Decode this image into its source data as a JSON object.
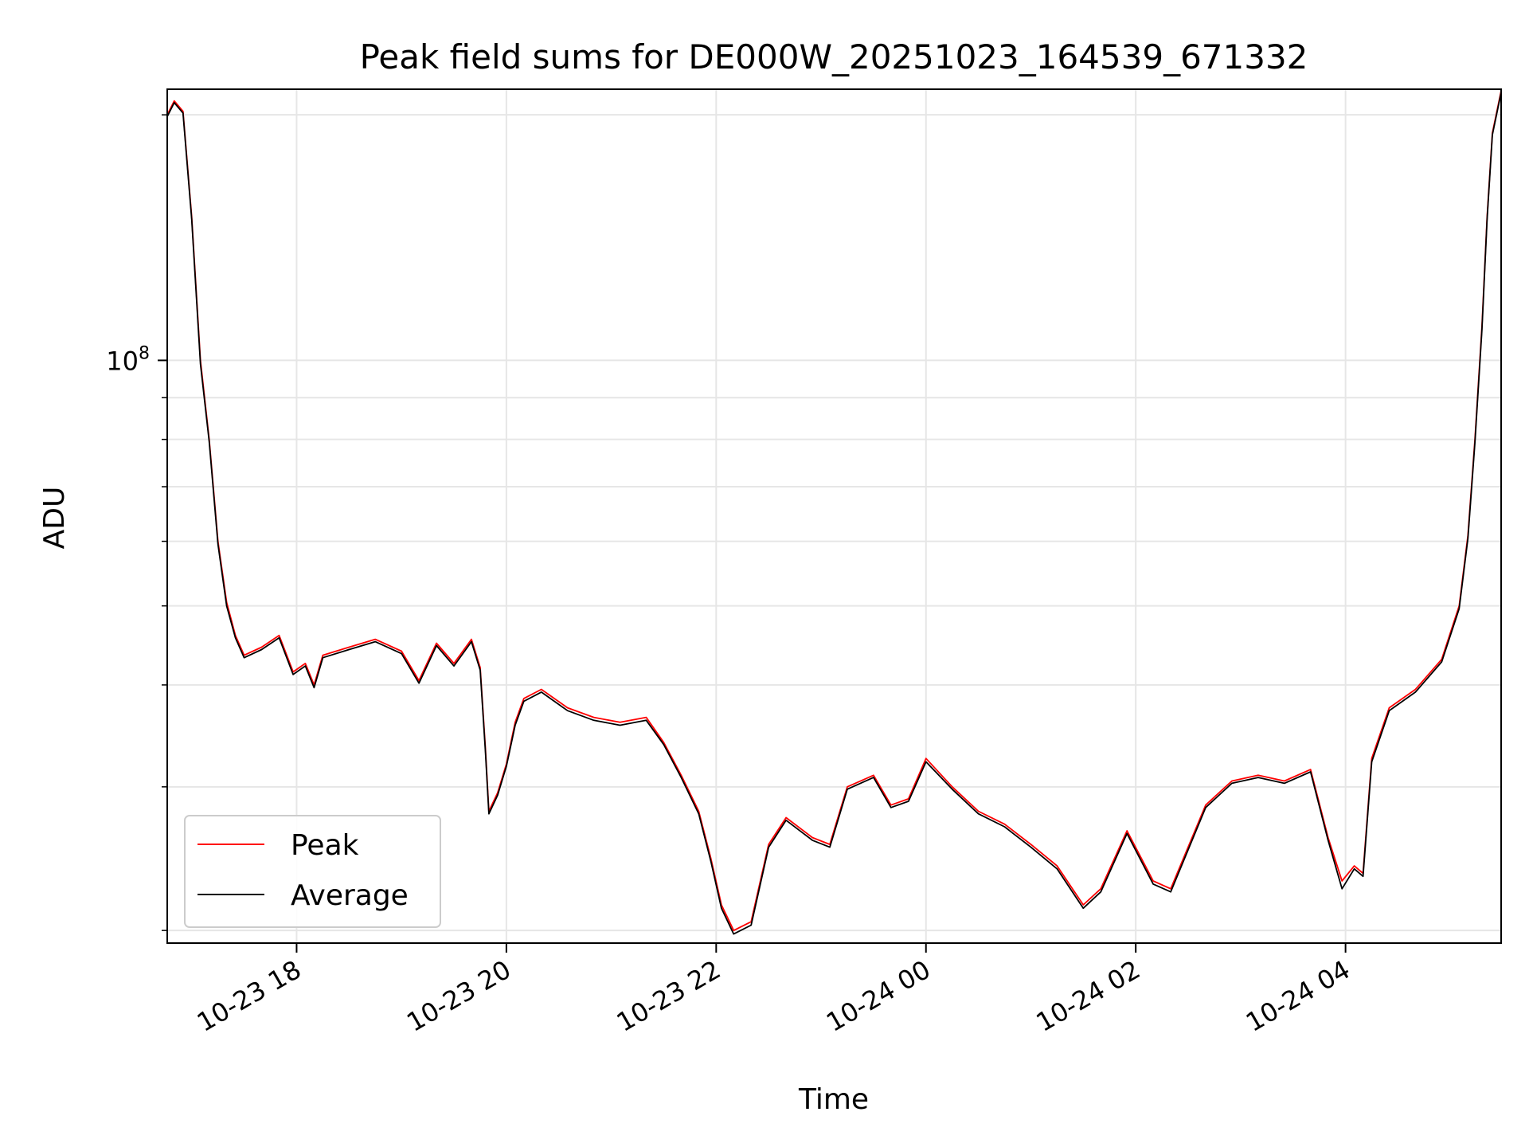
{
  "chart_data": {
    "type": "line",
    "title": "Peak field sums for DE000W_20251023_164539_671332",
    "xlabel": "Time",
    "ylabel": "ADU",
    "yscale": "log",
    "xlim": [
      "2025-10-23 16:46",
      "2025-10-24 05:29"
    ],
    "ylim": [
      19300000,
      215000000
    ],
    "x_ticks": [
      {
        "date": "2025-10-23 18:00",
        "label": "10-23 18"
      },
      {
        "date": "2025-10-23 20:00",
        "label": "10-23 20"
      },
      {
        "date": "2025-10-23 22:00",
        "label": "10-23 22"
      },
      {
        "date": "2025-10-24 00:00",
        "label": "10-24 00"
      },
      {
        "date": "2025-10-24 02:00",
        "label": "10-24 02"
      },
      {
        "date": "2025-10-24 04:00",
        "label": "10-24 04"
      }
    ],
    "y_ticks": [
      {
        "value": 100000000,
        "base": "10",
        "exp": "8"
      }
    ],
    "y_minor_ticks": [
      20000000,
      30000000,
      40000000,
      50000000,
      60000000,
      70000000,
      80000000,
      90000000,
      200000000
    ],
    "grid": true,
    "legend_position": "lower-left",
    "series": [
      {
        "name": "Peak",
        "color": "#ff0000",
        "points": [
          [
            "2025-10-23 16:46",
            200000000
          ],
          [
            "2025-10-23 16:50",
            208000000
          ],
          [
            "2025-10-23 16:55",
            202000000
          ],
          [
            "2025-10-23 17:00",
            150000000
          ],
          [
            "2025-10-23 17:05",
            100000000
          ],
          [
            "2025-10-23 17:10",
            80000000
          ],
          [
            "2025-10-23 17:15",
            60000000
          ],
          [
            "2025-10-23 17:20",
            50500000
          ],
          [
            "2025-10-23 17:25",
            46000000
          ],
          [
            "2025-10-23 17:30",
            43500000
          ],
          [
            "2025-10-23 17:40",
            44500000
          ],
          [
            "2025-10-23 17:50",
            46000000
          ],
          [
            "2025-10-23 17:58",
            41500000
          ],
          [
            "2025-10-23 18:05",
            42500000
          ],
          [
            "2025-10-23 18:10",
            40000000
          ],
          [
            "2025-10-23 18:15",
            43500000
          ],
          [
            "2025-10-23 18:30",
            44500000
          ],
          [
            "2025-10-23 18:45",
            45500000
          ],
          [
            "2025-10-23 19:00",
            44000000
          ],
          [
            "2025-10-23 19:10",
            40500000
          ],
          [
            "2025-10-23 19:20",
            45000000
          ],
          [
            "2025-10-23 19:30",
            42500000
          ],
          [
            "2025-10-23 19:40",
            45500000
          ],
          [
            "2025-10-23 19:45",
            42000000
          ],
          [
            "2025-10-23 19:48",
            33500000
          ],
          [
            "2025-10-23 19:50",
            28000000
          ],
          [
            "2025-10-23 19:55",
            29500000
          ],
          [
            "2025-10-23 20:00",
            32000000
          ],
          [
            "2025-10-23 20:05",
            36000000
          ],
          [
            "2025-10-23 20:10",
            38500000
          ],
          [
            "2025-10-23 20:20",
            39500000
          ],
          [
            "2025-10-23 20:35",
            37500000
          ],
          [
            "2025-10-23 20:50",
            36500000
          ],
          [
            "2025-10-23 21:05",
            36000000
          ],
          [
            "2025-10-23 21:20",
            36500000
          ],
          [
            "2025-10-23 21:30",
            34000000
          ],
          [
            "2025-10-23 21:40",
            31000000
          ],
          [
            "2025-10-23 21:50",
            28000000
          ],
          [
            "2025-10-23 21:57",
            24500000
          ],
          [
            "2025-10-23 22:03",
            21500000
          ],
          [
            "2025-10-23 22:10",
            20000000
          ],
          [
            "2025-10-23 22:20",
            20500000
          ],
          [
            "2025-10-23 22:30",
            25500000
          ],
          [
            "2025-10-23 22:40",
            27500000
          ],
          [
            "2025-10-23 22:55",
            26000000
          ],
          [
            "2025-10-23 23:05",
            25500000
          ],
          [
            "2025-10-23 23:15",
            30000000
          ],
          [
            "2025-10-23 23:30",
            31000000
          ],
          [
            "2025-10-23 23:40",
            28500000
          ],
          [
            "2025-10-23 23:50",
            29000000
          ],
          [
            "2025-10-24 00:00",
            32500000
          ],
          [
            "2025-10-24 00:15",
            30000000
          ],
          [
            "2025-10-24 00:30",
            28000000
          ],
          [
            "2025-10-24 00:45",
            27000000
          ],
          [
            "2025-10-24 01:00",
            25500000
          ],
          [
            "2025-10-24 01:15",
            24000000
          ],
          [
            "2025-10-24 01:30",
            21500000
          ],
          [
            "2025-10-24 01:40",
            22500000
          ],
          [
            "2025-10-24 01:55",
            26500000
          ],
          [
            "2025-10-24 02:10",
            23000000
          ],
          [
            "2025-10-24 02:20",
            22500000
          ],
          [
            "2025-10-24 02:40",
            28500000
          ],
          [
            "2025-10-24 02:55",
            30500000
          ],
          [
            "2025-10-24 03:10",
            31000000
          ],
          [
            "2025-10-24 03:25",
            30500000
          ],
          [
            "2025-10-24 03:40",
            31500000
          ],
          [
            "2025-10-24 03:50",
            26000000
          ],
          [
            "2025-10-24 03:58",
            23000000
          ],
          [
            "2025-10-24 04:05",
            24000000
          ],
          [
            "2025-10-24 04:10",
            23500000
          ],
          [
            "2025-10-24 04:15",
            32500000
          ],
          [
            "2025-10-24 04:25",
            37500000
          ],
          [
            "2025-10-24 04:40",
            39500000
          ],
          [
            "2025-10-24 04:55",
            43000000
          ],
          [
            "2025-10-24 05:05",
            50000000
          ],
          [
            "2025-10-24 05:10",
            61000000
          ],
          [
            "2025-10-24 05:14",
            80000000
          ],
          [
            "2025-10-24 05:18",
            110000000
          ],
          [
            "2025-10-24 05:21",
            150000000
          ],
          [
            "2025-10-24 05:24",
            190000000
          ],
          [
            "2025-10-24 05:29",
            214000000
          ]
        ]
      },
      {
        "name": "Average",
        "color": "#000000",
        "points": [
          [
            "2025-10-23 16:46",
            199000000
          ],
          [
            "2025-10-23 16:50",
            207000000
          ],
          [
            "2025-10-23 16:55",
            201000000
          ],
          [
            "2025-10-23 17:00",
            149000000
          ],
          [
            "2025-10-23 17:05",
            99000000
          ],
          [
            "2025-10-23 17:10",
            79500000
          ],
          [
            "2025-10-23 17:15",
            59500000
          ],
          [
            "2025-10-23 17:20",
            50000000
          ],
          [
            "2025-10-23 17:25",
            45700000
          ],
          [
            "2025-10-23 17:30",
            43200000
          ],
          [
            "2025-10-23 17:40",
            44200000
          ],
          [
            "2025-10-23 17:50",
            45700000
          ],
          [
            "2025-10-23 17:58",
            41200000
          ],
          [
            "2025-10-23 18:05",
            42200000
          ],
          [
            "2025-10-23 18:10",
            39700000
          ],
          [
            "2025-10-23 18:15",
            43200000
          ],
          [
            "2025-10-23 18:30",
            44200000
          ],
          [
            "2025-10-23 18:45",
            45200000
          ],
          [
            "2025-10-23 19:00",
            43700000
          ],
          [
            "2025-10-23 19:10",
            40200000
          ],
          [
            "2025-10-23 19:20",
            44700000
          ],
          [
            "2025-10-23 19:30",
            42200000
          ],
          [
            "2025-10-23 19:40",
            45200000
          ],
          [
            "2025-10-23 19:45",
            41700000
          ],
          [
            "2025-10-23 19:48",
            33200000
          ],
          [
            "2025-10-23 19:50",
            27800000
          ],
          [
            "2025-10-23 19:55",
            29300000
          ],
          [
            "2025-10-23 20:00",
            31800000
          ],
          [
            "2025-10-23 20:05",
            35700000
          ],
          [
            "2025-10-23 20:10",
            38200000
          ],
          [
            "2025-10-23 20:20",
            39200000
          ],
          [
            "2025-10-23 20:35",
            37200000
          ],
          [
            "2025-10-23 20:50",
            36200000
          ],
          [
            "2025-10-23 21:05",
            35700000
          ],
          [
            "2025-10-23 21:20",
            36200000
          ],
          [
            "2025-10-23 21:30",
            33800000
          ],
          [
            "2025-10-23 21:40",
            30800000
          ],
          [
            "2025-10-23 21:50",
            27800000
          ],
          [
            "2025-10-23 21:57",
            24300000
          ],
          [
            "2025-10-23 22:03",
            21300000
          ],
          [
            "2025-10-23 22:10",
            19800000
          ],
          [
            "2025-10-23 22:20",
            20300000
          ],
          [
            "2025-10-23 22:30",
            25300000
          ],
          [
            "2025-10-23 22:40",
            27300000
          ],
          [
            "2025-10-23 22:55",
            25800000
          ],
          [
            "2025-10-23 23:05",
            25300000
          ],
          [
            "2025-10-23 23:15",
            29800000
          ],
          [
            "2025-10-23 23:30",
            30800000
          ],
          [
            "2025-10-23 23:40",
            28300000
          ],
          [
            "2025-10-23 23:50",
            28800000
          ],
          [
            "2025-10-24 00:00",
            32200000
          ],
          [
            "2025-10-24 00:15",
            29800000
          ],
          [
            "2025-10-24 00:30",
            27800000
          ],
          [
            "2025-10-24 00:45",
            26800000
          ],
          [
            "2025-10-24 01:00",
            25300000
          ],
          [
            "2025-10-24 01:15",
            23800000
          ],
          [
            "2025-10-24 01:30",
            21300000
          ],
          [
            "2025-10-24 01:40",
            22300000
          ],
          [
            "2025-10-24 01:55",
            26300000
          ],
          [
            "2025-10-24 02:10",
            22800000
          ],
          [
            "2025-10-24 02:20",
            22300000
          ],
          [
            "2025-10-24 02:40",
            28300000
          ],
          [
            "2025-10-24 02:55",
            30300000
          ],
          [
            "2025-10-24 03:10",
            30800000
          ],
          [
            "2025-10-24 03:25",
            30300000
          ],
          [
            "2025-10-24 03:40",
            31300000
          ],
          [
            "2025-10-24 03:50",
            25800000
          ],
          [
            "2025-10-24 03:58",
            22500000
          ],
          [
            "2025-10-24 04:05",
            23800000
          ],
          [
            "2025-10-24 04:10",
            23300000
          ],
          [
            "2025-10-24 04:15",
            32200000
          ],
          [
            "2025-10-24 04:25",
            37200000
          ],
          [
            "2025-10-24 04:40",
            39200000
          ],
          [
            "2025-10-24 04:55",
            42700000
          ],
          [
            "2025-10-24 05:05",
            49600000
          ],
          [
            "2025-10-24 05:10",
            60500000
          ],
          [
            "2025-10-24 05:14",
            79300000
          ],
          [
            "2025-10-24 05:18",
            109000000
          ],
          [
            "2025-10-24 05:21",
            149000000
          ],
          [
            "2025-10-24 05:24",
            189000000
          ],
          [
            "2025-10-24 05:29",
            213000000
          ]
        ]
      }
    ]
  }
}
